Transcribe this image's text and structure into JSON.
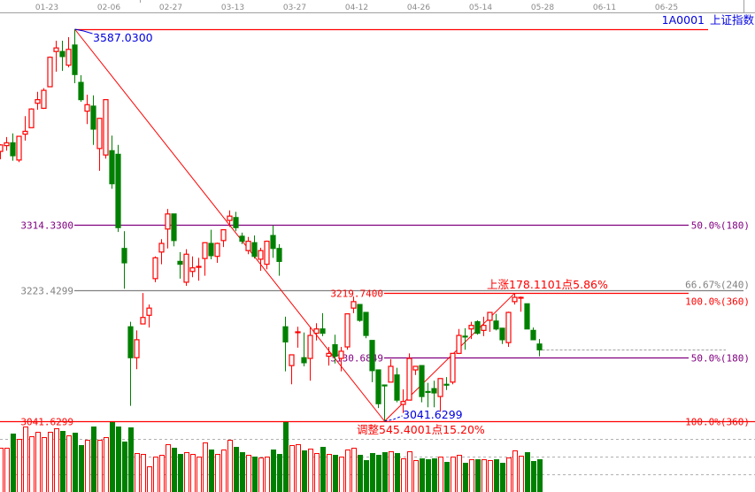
{
  "symbol": {
    "code": "1A0001",
    "name": "上证指数"
  },
  "colors": {
    "up": "#ff0000",
    "down": "#008000",
    "fib50": "#800080",
    "gray_level": "#808080",
    "annotation_blue": "#0000e0",
    "annotation_red": "#ff0000",
    "grid": "#b0b0b0"
  },
  "chart_data": {
    "type": "candlestick",
    "x_tick_labels": [
      "01-23",
      "02-06",
      "02-27",
      "03-13",
      "03-27",
      "04-12",
      "04-26",
      "05-14",
      "05-28",
      "06-11",
      "06-25"
    ],
    "ylim": [
      3041.6299,
      3587.03
    ],
    "candles_ohlc": [
      [
        3417,
        3427,
        3406,
        3426
      ],
      [
        3425,
        3437,
        3418,
        3429
      ],
      [
        3429,
        3442,
        3404,
        3411
      ],
      [
        3405,
        3438,
        3402,
        3438
      ],
      [
        3441,
        3466,
        3432,
        3445
      ],
      [
        3450,
        3477,
        3450,
        3476
      ],
      [
        3484,
        3500,
        3475,
        3489
      ],
      [
        3477,
        3505,
        3476,
        3502
      ],
      [
        3507,
        3549,
        3507,
        3548
      ],
      [
        3556,
        3571,
        3528,
        3561
      ],
      [
        3556,
        3571,
        3529,
        3549
      ],
      [
        3537,
        3576,
        3534,
        3559
      ],
      [
        3565,
        3587.03,
        3512,
        3524
      ],
      [
        3513,
        3523,
        3486,
        3489
      ],
      [
        3473,
        3496,
        3455,
        3482
      ],
      [
        3480,
        3495,
        3426,
        3448
      ],
      [
        3421,
        3463,
        3390,
        3463
      ],
      [
        3412,
        3489,
        3407,
        3489
      ],
      [
        3418,
        3439,
        3365,
        3372
      ],
      [
        3413,
        3426,
        3305,
        3311
      ],
      [
        3282,
        3306,
        3226,
        3262
      ],
      [
        3173,
        3180,
        3063,
        3130
      ],
      [
        3130,
        3168,
        3114,
        3155
      ],
      [
        3177,
        3220,
        3177,
        3186
      ],
      [
        3189,
        3204,
        3172,
        3199
      ],
      [
        3240,
        3271,
        3235,
        3269
      ],
      [
        3277,
        3295,
        3260,
        3289
      ],
      [
        3309,
        3337,
        3282,
        3330
      ],
      [
        3330,
        3330,
        3285,
        3293
      ],
      [
        3264,
        3277,
        3240,
        3260
      ],
      [
        3235,
        3281,
        3230,
        3274
      ],
      [
        3250,
        3271,
        3242,
        3255
      ],
      [
        3256,
        3269,
        3237,
        3257
      ],
      [
        3268,
        3290,
        3244,
        3290
      ],
      [
        3289,
        3308,
        3267,
        3272
      ],
      [
        3271,
        3290,
        3262,
        3289
      ],
      [
        3293,
        3308,
        3284,
        3308
      ],
      [
        3321,
        3335,
        3312,
        3327
      ],
      [
        3325,
        3333,
        3306,
        3311
      ],
      [
        3299,
        3304,
        3288,
        3292
      ],
      [
        3279,
        3298,
        3274,
        3292
      ],
      [
        3290,
        3300,
        3268,
        3271
      ],
      [
        3267,
        3283,
        3251,
        3279
      ],
      [
        3260,
        3293,
        3253,
        3292
      ],
      [
        3300,
        3314,
        3269,
        3282
      ],
      [
        3282,
        3288,
        3244,
        3264
      ],
      [
        3173,
        3187,
        3111,
        3152
      ],
      [
        3119,
        3134,
        3093,
        3134
      ],
      [
        3165,
        3173,
        3144,
        3166
      ],
      [
        3130,
        3165,
        3118,
        3123
      ],
      [
        3129,
        3173,
        3098,
        3161
      ],
      [
        3164,
        3178,
        3154,
        3170
      ],
      [
        3170,
        3192,
        3160,
        3164
      ],
      [
        3132,
        3145,
        3119,
        3136
      ],
      [
        3148,
        3162,
        3122,
        3132
      ],
      [
        3129,
        3145,
        3111,
        3139
      ],
      [
        3145,
        3191,
        3141,
        3191
      ],
      [
        3199,
        3215,
        3192,
        3208
      ],
      [
        3204,
        3204,
        3180,
        3182
      ],
      [
        3193,
        3193,
        3157,
        3161
      ],
      [
        3154,
        3154,
        3096,
        3112
      ],
      [
        3113,
        3113,
        3060,
        3066
      ],
      [
        3092,
        3092,
        3041.6299,
        3091
      ],
      [
        3096,
        3128,
        3096,
        3118
      ],
      [
        3106,
        3116,
        3068,
        3071
      ],
      [
        3065,
        3086,
        3053,
        3069
      ],
      [
        3071,
        3136,
        3071,
        3129
      ],
      [
        3113,
        3118,
        3106,
        3118
      ],
      [
        3119,
        3119,
        3068,
        3076
      ],
      [
        3083,
        3095,
        3061,
        3082
      ],
      [
        3087,
        3098,
        3061,
        3081
      ],
      [
        3076,
        3101,
        3055,
        3101
      ],
      [
        3093,
        3103,
        3085,
        3092
      ],
      [
        3096,
        3136,
        3093,
        3136
      ],
      [
        3136,
        3170,
        3135,
        3161
      ],
      [
        3160,
        3171,
        3141,
        3159
      ],
      [
        3170,
        3180,
        3156,
        3175
      ],
      [
        3180,
        3182,
        3162,
        3164
      ],
      [
        3168,
        3187,
        3160,
        3175
      ],
      [
        3182,
        3193,
        3166,
        3193
      ],
      [
        3181,
        3191,
        3168,
        3170
      ],
      [
        3171,
        3171,
        3149,
        3155
      ],
      [
        3151,
        3194,
        3145,
        3193
      ],
      [
        3208,
        3219.74,
        3204,
        3214
      ],
      [
        3213,
        3215,
        3194,
        3214
      ],
      [
        3205,
        3205,
        3170,
        3170
      ],
      [
        3168,
        3172,
        3155,
        3155
      ],
      [
        3149,
        3156,
        3132,
        3141
      ]
    ],
    "volume_relative": [
      50,
      50,
      66,
      60,
      74,
      63,
      68,
      62,
      68,
      72,
      69,
      64,
      67,
      53,
      59,
      74,
      59,
      62,
      80,
      74,
      57,
      73,
      44,
      43,
      29,
      40,
      42,
      54,
      50,
      43,
      45,
      43,
      40,
      56,
      48,
      43,
      48,
      59,
      51,
      45,
      42,
      40,
      39,
      40,
      48,
      43,
      80,
      53,
      54,
      47,
      49,
      44,
      51,
      43,
      42,
      40,
      48,
      50,
      42,
      36,
      44,
      42,
      45,
      46,
      44,
      38,
      46,
      36,
      38,
      37,
      38,
      40,
      34,
      40,
      42,
      33,
      37,
      37,
      37,
      36,
      37,
      33,
      39,
      47,
      41,
      45,
      35,
      37
    ],
    "levels": [
      {
        "price": 3314.33,
        "left_label": "3314.3300",
        "right_label": "50.0%(180)",
        "color": "#800080"
      },
      {
        "price": 3223.4299,
        "left_label": "3223.4299",
        "right_label": "66.67%(240)",
        "color": "#808080"
      },
      {
        "price": 3219.74,
        "left_label": "3219.7400",
        "right_label": "100.0%(360)",
        "color": "#ff0000"
      },
      {
        "price": 3130.6849,
        "left_label": "3130.6849",
        "right_label": "50.0%(180)",
        "color": "#800080"
      },
      {
        "price": 3041.6299,
        "left_label": "3041.6299",
        "right_label": "100.0%(360)",
        "color": "#ff0000"
      }
    ],
    "annotations": {
      "high_label": "3587.0300",
      "low_label": "3041.6299",
      "decline_text": "调整545.4001点15.20%",
      "rise_text": "上涨178.1101点5.86%"
    },
    "last_close": 3141
  }
}
